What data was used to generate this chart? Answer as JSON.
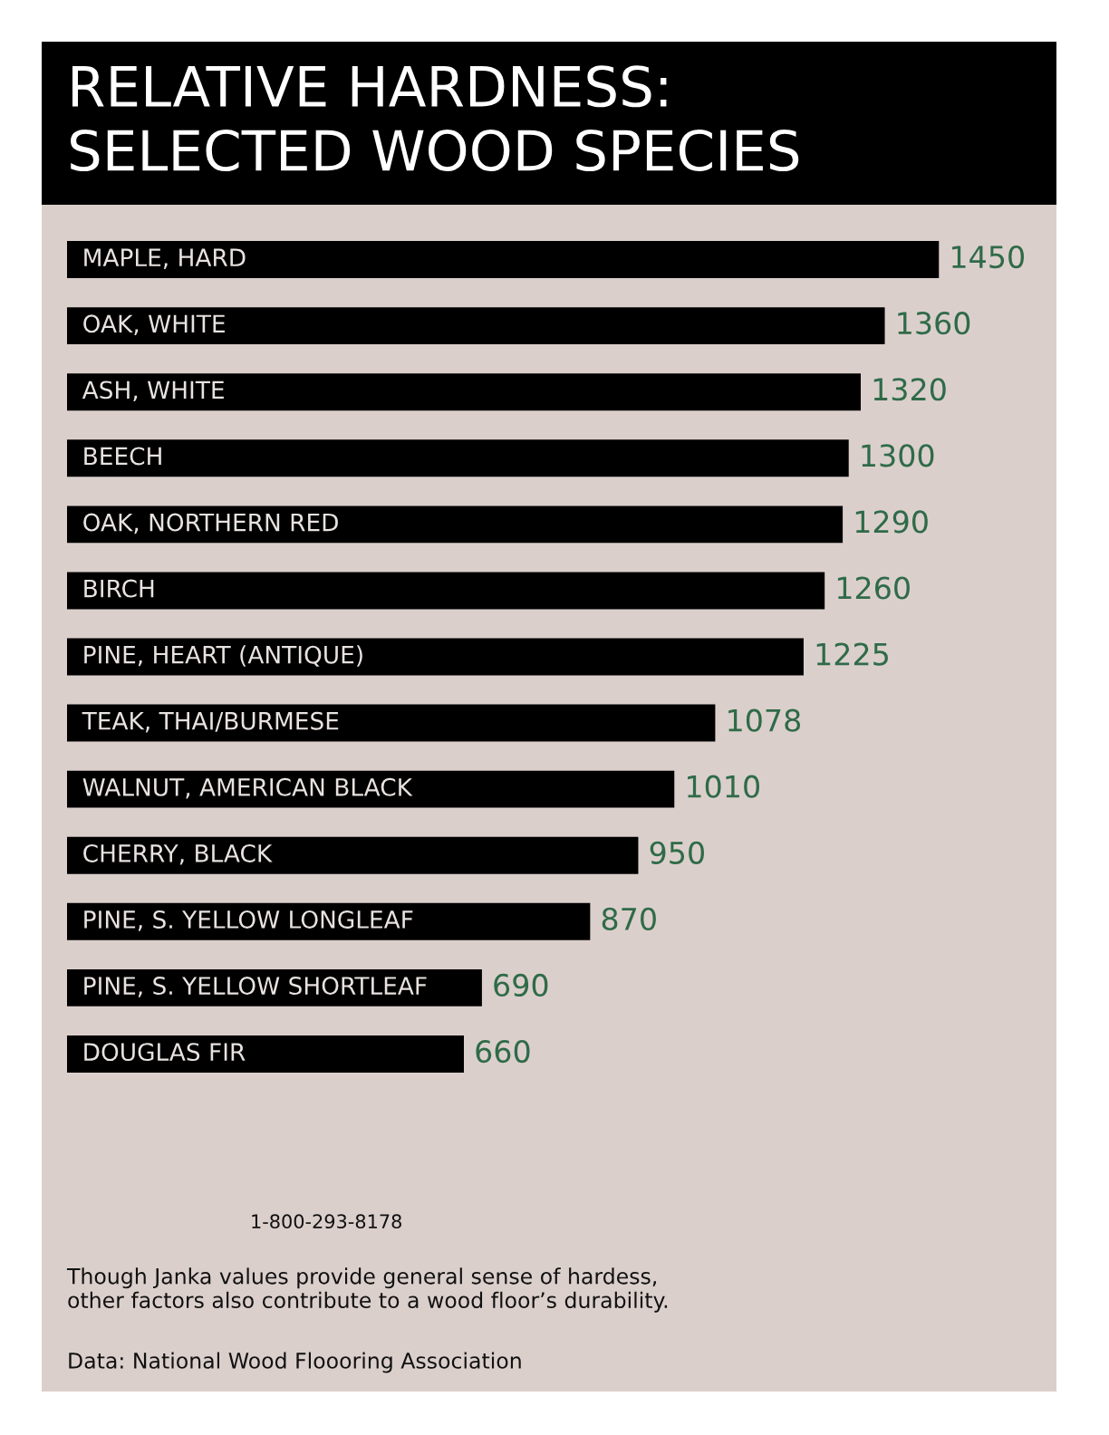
{
  "chart_data": {
    "type": "bar",
    "orientation": "horizontal",
    "title": "RELATIVE HARDNESS:\nSELECTED WOOD SPECIES",
    "categories": [
      "MAPLE, HARD",
      "OAK, WHITE",
      "ASH, WHITE",
      "BEECH",
      "OAK, NORTHERN RED",
      "BIRCH",
      "PINE, HEART (ANTIQUE)",
      "TEAK, THAI/BURMESE",
      "WALNUT, AMERICAN BLACK",
      "CHERRY, BLACK",
      "PINE, S. YELLOW LONGLEAF",
      "PINE, S. YELLOW SHORTLEAF",
      "DOUGLAS FIR"
    ],
    "values": [
      1450,
      1360,
      1320,
      1300,
      1290,
      1260,
      1225,
      1078,
      1010,
      950,
      870,
      690,
      660
    ],
    "color": "#000000",
    "data_labels": true,
    "tick_labels": "y",
    "annotations": [
      "1-800-293-8178",
      "Though Janka values provide general sense of hardess,\nother factors also contribute to a wood floor’s durability.",
      "Data: National Wood Floooring Association"
    ]
  }
}
